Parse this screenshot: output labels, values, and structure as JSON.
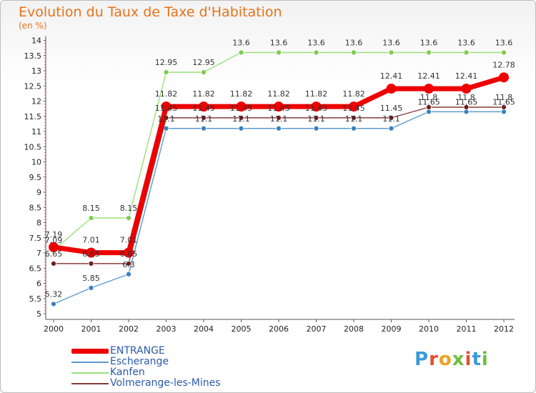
{
  "title": "Evolution du Taux de Taxe d'Habitation",
  "subtitle": "(en %)",
  "logo": {
    "text": "Proxiti",
    "letters": [
      {
        "ch": "P",
        "color": "#3a9ad9"
      },
      {
        "ch": "r",
        "color": "#e84c2f"
      },
      {
        "ch": "o",
        "color": "#f0a020"
      },
      {
        "ch": "x",
        "color": "#6cbf3a"
      },
      {
        "ch": "i",
        "color": "#e84c2f"
      },
      {
        "ch": "t",
        "color": "#3a9ad9"
      },
      {
        "ch": "i",
        "color": "#6cbf3a"
      }
    ]
  },
  "chart_data": {
    "type": "line",
    "title": "Evolution du Taux de Taxe d'Habitation",
    "subtitle": "(en %)",
    "x": [
      "2000",
      "2001",
      "2002",
      "2003",
      "2004",
      "2005",
      "2006",
      "2007",
      "2008",
      "2009",
      "2010",
      "2011",
      "2012"
    ],
    "ylim": [
      5,
      14
    ],
    "yticks": [
      "5",
      "5.5",
      "6",
      "6.5",
      "7",
      "7.5",
      "8",
      "8.5",
      "9",
      "9.5",
      "10",
      "10.5",
      "11",
      "11.5",
      "12",
      "12.5",
      "13",
      "13.5",
      "14"
    ],
    "grid": false,
    "legend_position": "bottom-left",
    "series": [
      {
        "name": "Escherange",
        "color": "#5a9bd0",
        "marker": "#3b7fc0",
        "width": 1.4,
        "r": 3.5,
        "values": [
          5.32,
          5.85,
          6.3,
          11.1,
          11.1,
          11.1,
          11.1,
          11.1,
          11.1,
          11.1,
          11.65,
          11.65,
          11.65
        ],
        "labels": [
          "5.32",
          "5.85",
          "6.3",
          "11.1",
          "11.1",
          "11.1",
          "11.1",
          "11.1",
          "11.1",
          "11.1",
          "11.65",
          "11.65",
          "11.65"
        ]
      },
      {
        "name": "Volmerange-les-Mines",
        "color": "#8a3a3a",
        "marker": "#6e1f1f",
        "width": 1.4,
        "r": 3.5,
        "values": [
          6.65,
          6.65,
          6.65,
          11.45,
          11.45,
          11.45,
          11.45,
          11.45,
          11.45,
          11.45,
          11.8,
          11.8,
          11.8
        ],
        "labels": [
          "6.65",
          "6.65",
          "6.65",
          "11.45",
          "11.45",
          "11.45",
          "11.45",
          "11.45",
          "11.45",
          "11.45",
          "11.8",
          "11.8",
          "11.8"
        ]
      },
      {
        "name": "Kanfen",
        "color": "#9be07a",
        "marker": "#7ecb4e",
        "width": 1.4,
        "r": 3.5,
        "values": [
          7.09,
          8.15,
          8.15,
          12.95,
          12.95,
          13.6,
          13.6,
          13.6,
          13.6,
          13.6,
          13.6,
          13.6,
          13.6
        ],
        "labels": [
          "7.09",
          "8.15",
          "8.15",
          "12.95",
          "12.95",
          "13.6",
          "13.6",
          "13.6",
          "13.6",
          "13.6",
          "13.6",
          "13.6",
          "13.6"
        ]
      },
      {
        "name": "ENTRANGE",
        "color": "#ee0000",
        "marker": "#ee0000",
        "width": 7,
        "r": 7,
        "values": [
          7.19,
          7.01,
          7.01,
          11.82,
          11.82,
          11.82,
          11.82,
          11.82,
          11.82,
          12.41,
          12.41,
          12.41,
          12.78
        ],
        "labels": [
          "7.19",
          "7.01",
          "7.01",
          "11.82",
          "11.82",
          "11.82",
          "11.82",
          "11.82",
          "11.82",
          "12.41",
          "12.41",
          "12.41",
          "12.78"
        ]
      }
    ]
  }
}
